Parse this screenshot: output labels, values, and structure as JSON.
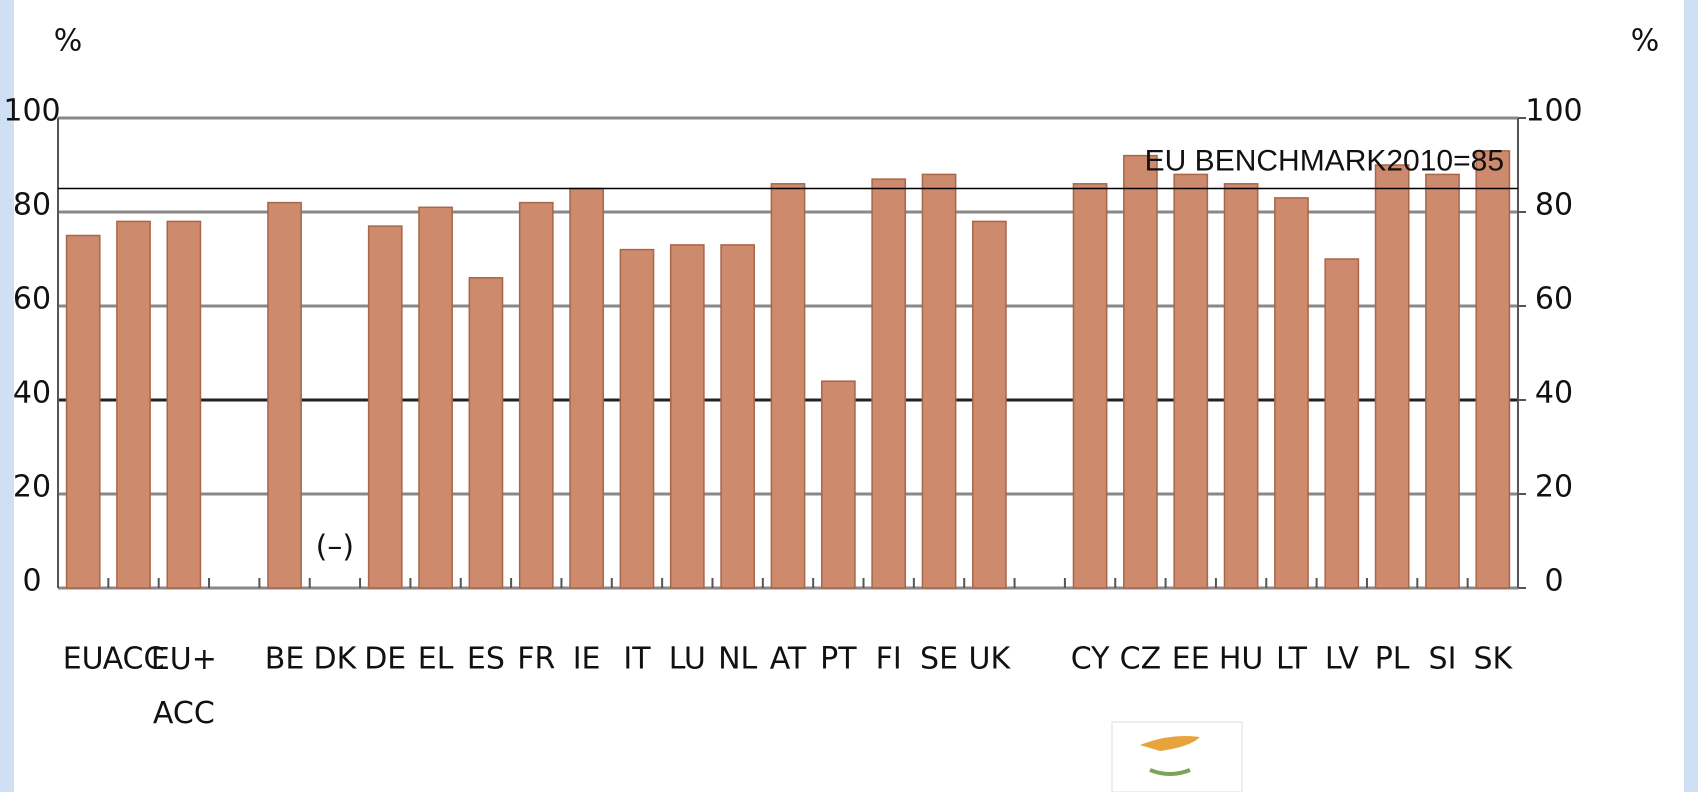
{
  "chart_data": {
    "type": "bar",
    "y_label": "%",
    "y2_label": "%",
    "categories": [
      "EU",
      "ACC",
      "EU+\nACC",
      null,
      "BE",
      "DK",
      "DE",
      "EL",
      "ES",
      "FR",
      "IE",
      "IT",
      "LU",
      "NL",
      "AT",
      "PT",
      "FI",
      "SE",
      "UK",
      null,
      "CY",
      "CZ",
      "EE",
      "HU",
      "LT",
      "LV",
      "PL",
      "SI",
      "SK"
    ],
    "values": [
      75,
      78,
      78,
      null,
      82,
      null,
      77,
      81,
      66,
      82,
      85,
      72,
      73,
      73,
      86,
      44,
      87,
      88,
      78,
      null,
      86,
      92,
      88,
      86,
      83,
      70,
      90,
      88,
      93
    ],
    "color": "#cd8a6c",
    "annotations": [
      {
        "text": "(–)",
        "category": "DK"
      }
    ],
    "benchmark": {
      "value": 85,
      "label": "EU BENCHMARK2010=85"
    },
    "ylim": [
      0,
      100
    ],
    "yticks": [
      0,
      20,
      40,
      60,
      80,
      100
    ],
    "y2lim": [
      0,
      100
    ],
    "y2ticks": [
      0,
      20,
      40,
      60,
      80,
      100
    ],
    "grid": true
  }
}
